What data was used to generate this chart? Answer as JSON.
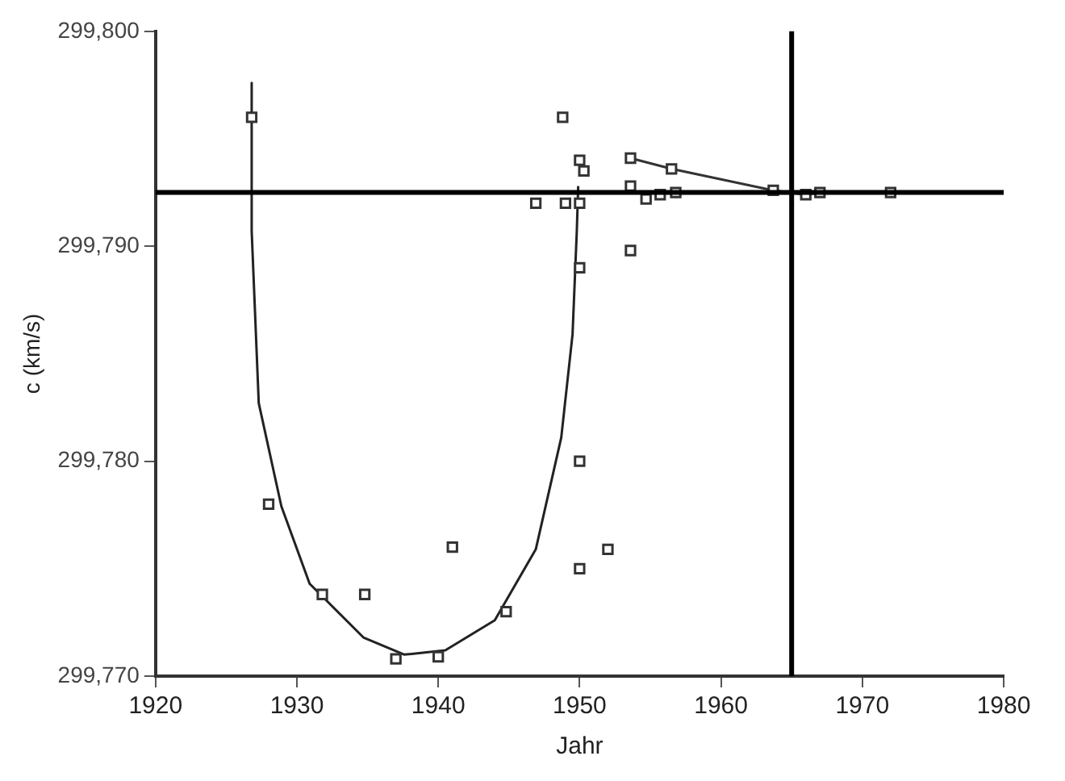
{
  "chart_data": {
    "type": "scatter",
    "xlabel": "Jahr",
    "ylabel": "c (km/s)",
    "xlim": [
      1920,
      1980
    ],
    "xticks": [
      1920,
      1930,
      1940,
      1950,
      1960,
      1970,
      1980
    ],
    "ylim": [
      299770,
      299800
    ],
    "yticks": [
      {
        "value": 299770,
        "label": "299,770"
      },
      {
        "value": 299780,
        "label": "299,780"
      },
      {
        "value": 299790,
        "label": "299,790"
      },
      {
        "value": 299800,
        "label": "299,800"
      }
    ],
    "grid": false,
    "legend": false,
    "series": [
      {
        "type": "scatter",
        "marker": "square",
        "color": "#333333",
        "x": [
          1926.8,
          1928,
          1931.8,
          1934.8,
          1937,
          1940,
          1941,
          1944.8,
          1948.8,
          1946.9,
          1949,
          1950,
          1950,
          1950.3,
          1950,
          1950,
          1950,
          1952,
          1953.6,
          1953.6,
          1954.7,
          1955.7,
          1956.8
        ],
        "values": [
          299796,
          299778,
          299773.8,
          299773.8,
          299770.8,
          299770.9,
          299776,
          299773,
          299796,
          299792,
          299792,
          299792,
          299794,
          299793.5,
          299789,
          299780,
          299775,
          299775.9,
          299789.8,
          299792.8,
          299792.2,
          299792.4,
          299792.5
        ]
      },
      {
        "type": "line",
        "marker": "square",
        "line_style": "solid",
        "color": "#333333",
        "x": [
          1953.6,
          1956.5,
          1963.7,
          1966,
          1967,
          1972
        ],
        "values": [
          299794.1,
          299793.6,
          299792.6,
          299792.4,
          299792.5,
          299792.5
        ]
      },
      {
        "type": "line",
        "marker": "none",
        "line_style": "solid",
        "color": "#222222",
        "x": [
          1926.8,
          1926.8,
          1927.3,
          1928.9,
          1930.9,
          1934.7,
          1937.6,
          1940.5,
          1944,
          1946.9,
          1948.7,
          1949.5,
          1949.8,
          1949.9
        ],
        "values": [
          299797.6,
          299790.7,
          299782.7,
          299777.9,
          299774.3,
          299771.8,
          299771,
          299771.2,
          299772.6,
          299775.9,
          299781.1,
          299785.9,
          299790.7,
          299792.8
        ]
      }
    ],
    "ref_lines": [
      {
        "axis": "y",
        "value": 299792.5,
        "color": "#000000"
      },
      {
        "axis": "x",
        "value": 1965,
        "color": "#000000"
      }
    ]
  }
}
